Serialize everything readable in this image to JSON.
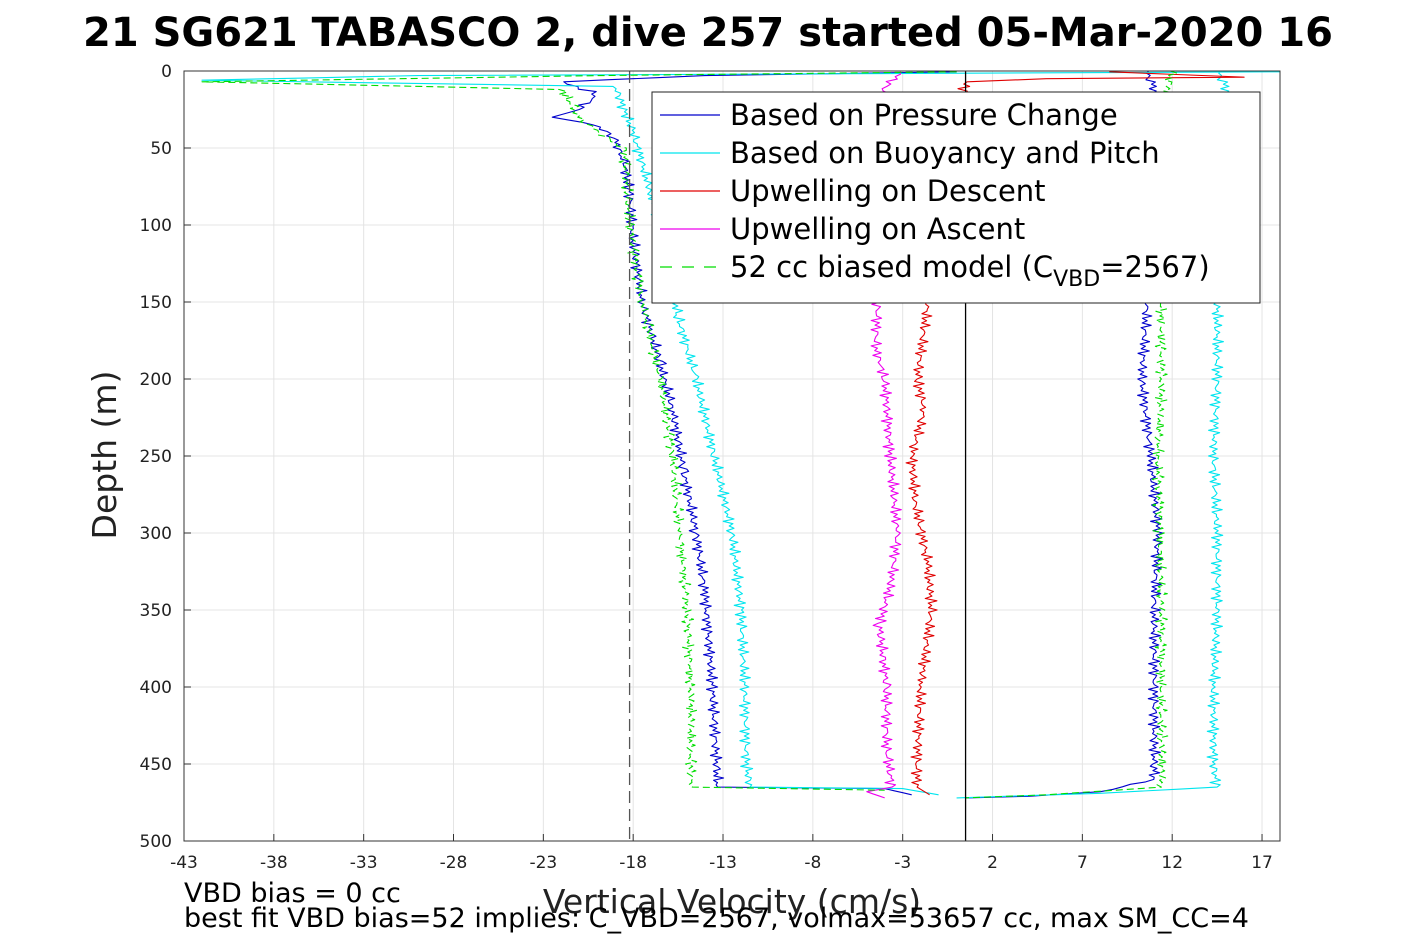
{
  "chart_data": {
    "type": "line",
    "title": "21 SG621 TABASCO 2, dive 257 started 05-Mar-2020 16",
    "xlabel": "Vertical Velocity (cm/s)",
    "ylabel": "Depth (m)",
    "xlim": [
      -43,
      18
    ],
    "ylim": [
      0,
      500
    ],
    "y_reversed": true,
    "grid": true,
    "x_ticks": [
      -43,
      -38,
      -33,
      -28,
      -23,
      -18,
      -13,
      -8,
      -3,
      2,
      7,
      12,
      17
    ],
    "y_ticks": [
      0,
      50,
      100,
      150,
      200,
      250,
      300,
      350,
      400,
      450,
      500
    ],
    "legend_position": "top-right",
    "legend": [
      {
        "label": "Based on Pressure Change",
        "color": "#0000cc",
        "style": "solid"
      },
      {
        "label": "Based on Buoyancy and Pitch",
        "color": "#00e5ee",
        "style": "solid"
      },
      {
        "label": "Upwelling on Descent",
        "color": "#e00000",
        "style": "solid"
      },
      {
        "label": "Upwelling on Ascent",
        "color": "#ee00ee",
        "style": "solid"
      },
      {
        "label": "52 cc biased model (C",
        "label_sub": "VBD",
        "label_suffix": "=2567)",
        "color": "#00dd00",
        "style": "dashed"
      }
    ],
    "reference_lines": [
      {
        "type": "vertical",
        "x": -18.2,
        "style": "dashed",
        "color": "#555555"
      },
      {
        "type": "vertical",
        "x": 0.5,
        "style": "solid",
        "color": "#000000"
      }
    ],
    "series": [
      {
        "id": "pressure_desc",
        "color": "#0000cc",
        "points": [
          [
            0,
            0.5
          ],
          [
            -14,
            3
          ],
          [
            -22,
            7
          ],
          [
            -20,
            15
          ],
          [
            -21,
            25
          ],
          [
            -22.5,
            30
          ],
          [
            -20,
            35
          ],
          [
            -19,
            45
          ],
          [
            -18.5,
            60
          ],
          [
            -18.2,
            80
          ],
          [
            -18,
            110
          ],
          [
            -17.5,
            150
          ],
          [
            -16.5,
            190
          ],
          [
            -15.8,
            220
          ],
          [
            -15.2,
            260
          ],
          [
            -14.5,
            300
          ],
          [
            -14,
            340
          ],
          [
            -13.6,
            400
          ],
          [
            -13.4,
            440
          ],
          [
            -13.3,
            465
          ],
          [
            -4,
            466
          ],
          [
            -2.5,
            470
          ]
        ]
      },
      {
        "id": "pressure_asc",
        "color": "#0000cc",
        "points": [
          [
            10.5,
            0
          ],
          [
            11,
            10
          ],
          [
            10.8,
            50
          ],
          [
            10.8,
            100
          ],
          [
            10.6,
            150
          ],
          [
            10.3,
            200
          ],
          [
            10.8,
            250
          ],
          [
            11.2,
            300
          ],
          [
            11,
            350
          ],
          [
            11,
            400
          ],
          [
            11,
            450
          ],
          [
            11,
            460
          ],
          [
            8,
            468
          ],
          [
            4,
            471
          ],
          [
            0.5,
            472
          ]
        ]
      },
      {
        "id": "buoyancy_desc",
        "color": "#00e5ee",
        "points": [
          [
            18,
            0.5
          ],
          [
            -30,
            3
          ],
          [
            -42,
            6
          ],
          [
            -19,
            10
          ],
          [
            -18.5,
            25
          ],
          [
            -18,
            40
          ],
          [
            -17,
            80
          ],
          [
            -16,
            120
          ],
          [
            -15.5,
            160
          ],
          [
            -14.5,
            200
          ],
          [
            -13.5,
            250
          ],
          [
            -12.5,
            300
          ],
          [
            -12,
            350
          ],
          [
            -11.8,
            400
          ],
          [
            -11.7,
            450
          ],
          [
            -11.5,
            465
          ],
          [
            -3,
            466
          ],
          [
            -1,
            470
          ]
        ]
      },
      {
        "id": "buoyancy_asc",
        "color": "#00e5ee",
        "points": [
          [
            14.5,
            0
          ],
          [
            15,
            10
          ],
          [
            14.5,
            100
          ],
          [
            14.5,
            150
          ],
          [
            14.5,
            200
          ],
          [
            14.3,
            250
          ],
          [
            14.5,
            300
          ],
          [
            14.5,
            350
          ],
          [
            14.3,
            400
          ],
          [
            14.3,
            450
          ],
          [
            14.5,
            465
          ],
          [
            8,
            469
          ],
          [
            0,
            472
          ]
        ]
      },
      {
        "id": "upwelling_desc",
        "color": "#e00000",
        "points": [
          [
            8.5,
            0.5
          ],
          [
            16,
            4
          ],
          [
            5,
            5
          ],
          [
            0.5,
            7
          ],
          [
            -1.6,
            150
          ],
          [
            -2.2,
            200
          ],
          [
            -1.8,
            220
          ],
          [
            -2.5,
            250
          ],
          [
            -2.3,
            280
          ],
          [
            -1.6,
            320
          ],
          [
            -1.4,
            350
          ],
          [
            -2,
            400
          ],
          [
            -2.2,
            450
          ],
          [
            -2.2,
            465
          ],
          [
            -1.5,
            470
          ]
        ]
      },
      {
        "id": "upwelling_asc",
        "color": "#ee00ee",
        "points": [
          [
            -3,
            0.5
          ],
          [
            -4,
            10
          ],
          [
            -4.4,
            150
          ],
          [
            -4.5,
            180
          ],
          [
            -4,
            200
          ],
          [
            -3.7,
            250
          ],
          [
            -3.3,
            300
          ],
          [
            -3.6,
            330
          ],
          [
            -4.3,
            360
          ],
          [
            -3.9,
            400
          ],
          [
            -3.9,
            440
          ],
          [
            -3.6,
            465
          ],
          [
            -5,
            468
          ],
          [
            -4,
            472
          ]
        ]
      },
      {
        "id": "model_desc",
        "color": "#00dd00",
        "dashed": true,
        "points": [
          [
            0,
            0.5
          ],
          [
            -20,
            3
          ],
          [
            -42,
            7
          ],
          [
            -22,
            12
          ],
          [
            -21.5,
            20
          ],
          [
            -21,
            30
          ],
          [
            -20,
            40
          ],
          [
            -18.5,
            50
          ],
          [
            -18.2,
            100
          ],
          [
            -17.5,
            150
          ],
          [
            -16.5,
            200
          ],
          [
            -15.8,
            250
          ],
          [
            -15.4,
            300
          ],
          [
            -15,
            350
          ],
          [
            -14.8,
            400
          ],
          [
            -14.8,
            450
          ],
          [
            -14.7,
            465
          ],
          [
            -4,
            467
          ]
        ]
      },
      {
        "id": "model_asc",
        "color": "#00dd00",
        "dashed": true,
        "points": [
          [
            12,
            0
          ],
          [
            11.8,
            10
          ],
          [
            11.6,
            100
          ],
          [
            11.4,
            150
          ],
          [
            11.4,
            200
          ],
          [
            11.2,
            250
          ],
          [
            11.3,
            300
          ],
          [
            11.4,
            350
          ],
          [
            11.4,
            400
          ],
          [
            11.4,
            450
          ],
          [
            11.4,
            465
          ],
          [
            5,
            470
          ],
          [
            0.5,
            472
          ]
        ]
      }
    ]
  },
  "notes": {
    "line1": "VBD bias = 0 cc",
    "line2": "best fit VBD bias=52 implies: C_VBD=2567, volmax=53657 cc, max SM_CC=4"
  }
}
